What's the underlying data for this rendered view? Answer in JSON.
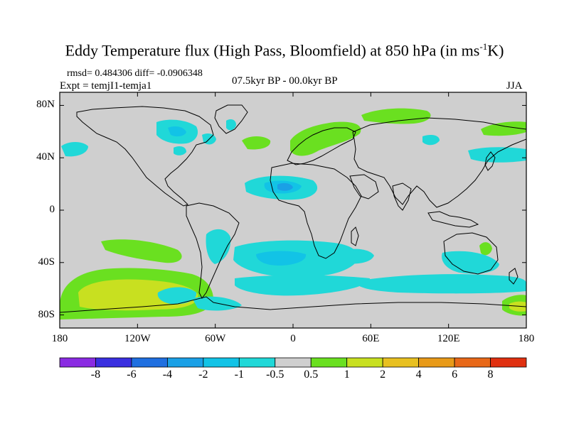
{
  "header": {
    "title_main": "Eddy Temperature flux (High Pass, Bloomfield) at 850 hPa (in ms",
    "title_sup": "-1",
    "title_end": "K)",
    "stats": "rmsd= 0.484306 diff= -0.0906348",
    "expt": "Expt = temjI1-temja1",
    "period": "07.5kyr BP - 00.0kyr BP",
    "season": "JJA"
  },
  "axes": {
    "lat_labels": [
      "80N",
      "40N",
      "0",
      "40S",
      "80S"
    ],
    "lat_values": [
      80,
      40,
      0,
      -40,
      -80
    ],
    "lon_labels": [
      "180",
      "120W",
      "60W",
      "0",
      "60E",
      "120E",
      "180"
    ],
    "lon_values": [
      -180,
      -120,
      -60,
      0,
      60,
      120,
      180
    ],
    "lon_range": [
      -180,
      180
    ],
    "lat_range": [
      -90,
      90
    ]
  },
  "colorbar": {
    "labels": [
      "-8",
      "-6",
      "-4",
      "-2",
      "-1",
      "-0.5",
      "0.5",
      "1",
      "2",
      "4",
      "6",
      "8"
    ],
    "colors": [
      "#8a2be2",
      "#3a2fe0",
      "#1f6fe0",
      "#1aa0e6",
      "#12c3e6",
      "#20d8d8",
      "#cfcfcf",
      "#6ae020",
      "#c8e020",
      "#e8c020",
      "#e89a18",
      "#e86818",
      "#e03010"
    ]
  },
  "colors": {
    "neutral": "#cfcfcf",
    "neg_light": "#20d8d8",
    "neg_mid": "#12c3e6",
    "neg_strong": "#1aa0e6",
    "pos_light": "#6ae020",
    "pos_mid": "#c8e020",
    "coast": "#000000"
  }
}
